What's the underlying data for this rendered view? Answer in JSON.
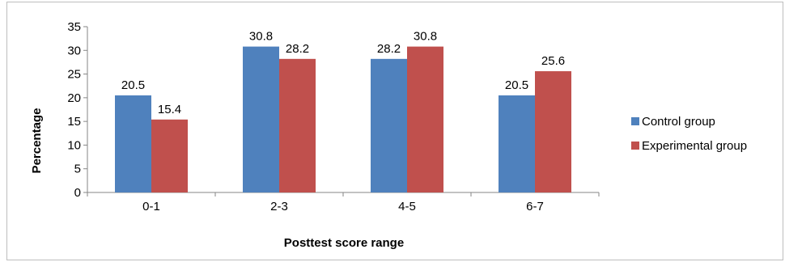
{
  "chart_data": {
    "type": "bar",
    "categories": [
      "0-1",
      "2-3",
      "4-5",
      "6-7"
    ],
    "series": [
      {
        "name": "Control group",
        "values": [
          20.5,
          30.8,
          28.2,
          20.5
        ],
        "color": "#4f81bd"
      },
      {
        "name": "Experimental group",
        "values": [
          15.4,
          28.2,
          30.8,
          25.6
        ],
        "color": "#c0504d"
      }
    ],
    "xlabel": "Posttest score range",
    "ylabel": "Percentage",
    "ylim": [
      0,
      35
    ],
    "yticks": [
      0,
      5,
      10,
      15,
      20,
      25,
      30,
      35
    ],
    "grid": false,
    "legend": "right"
  }
}
